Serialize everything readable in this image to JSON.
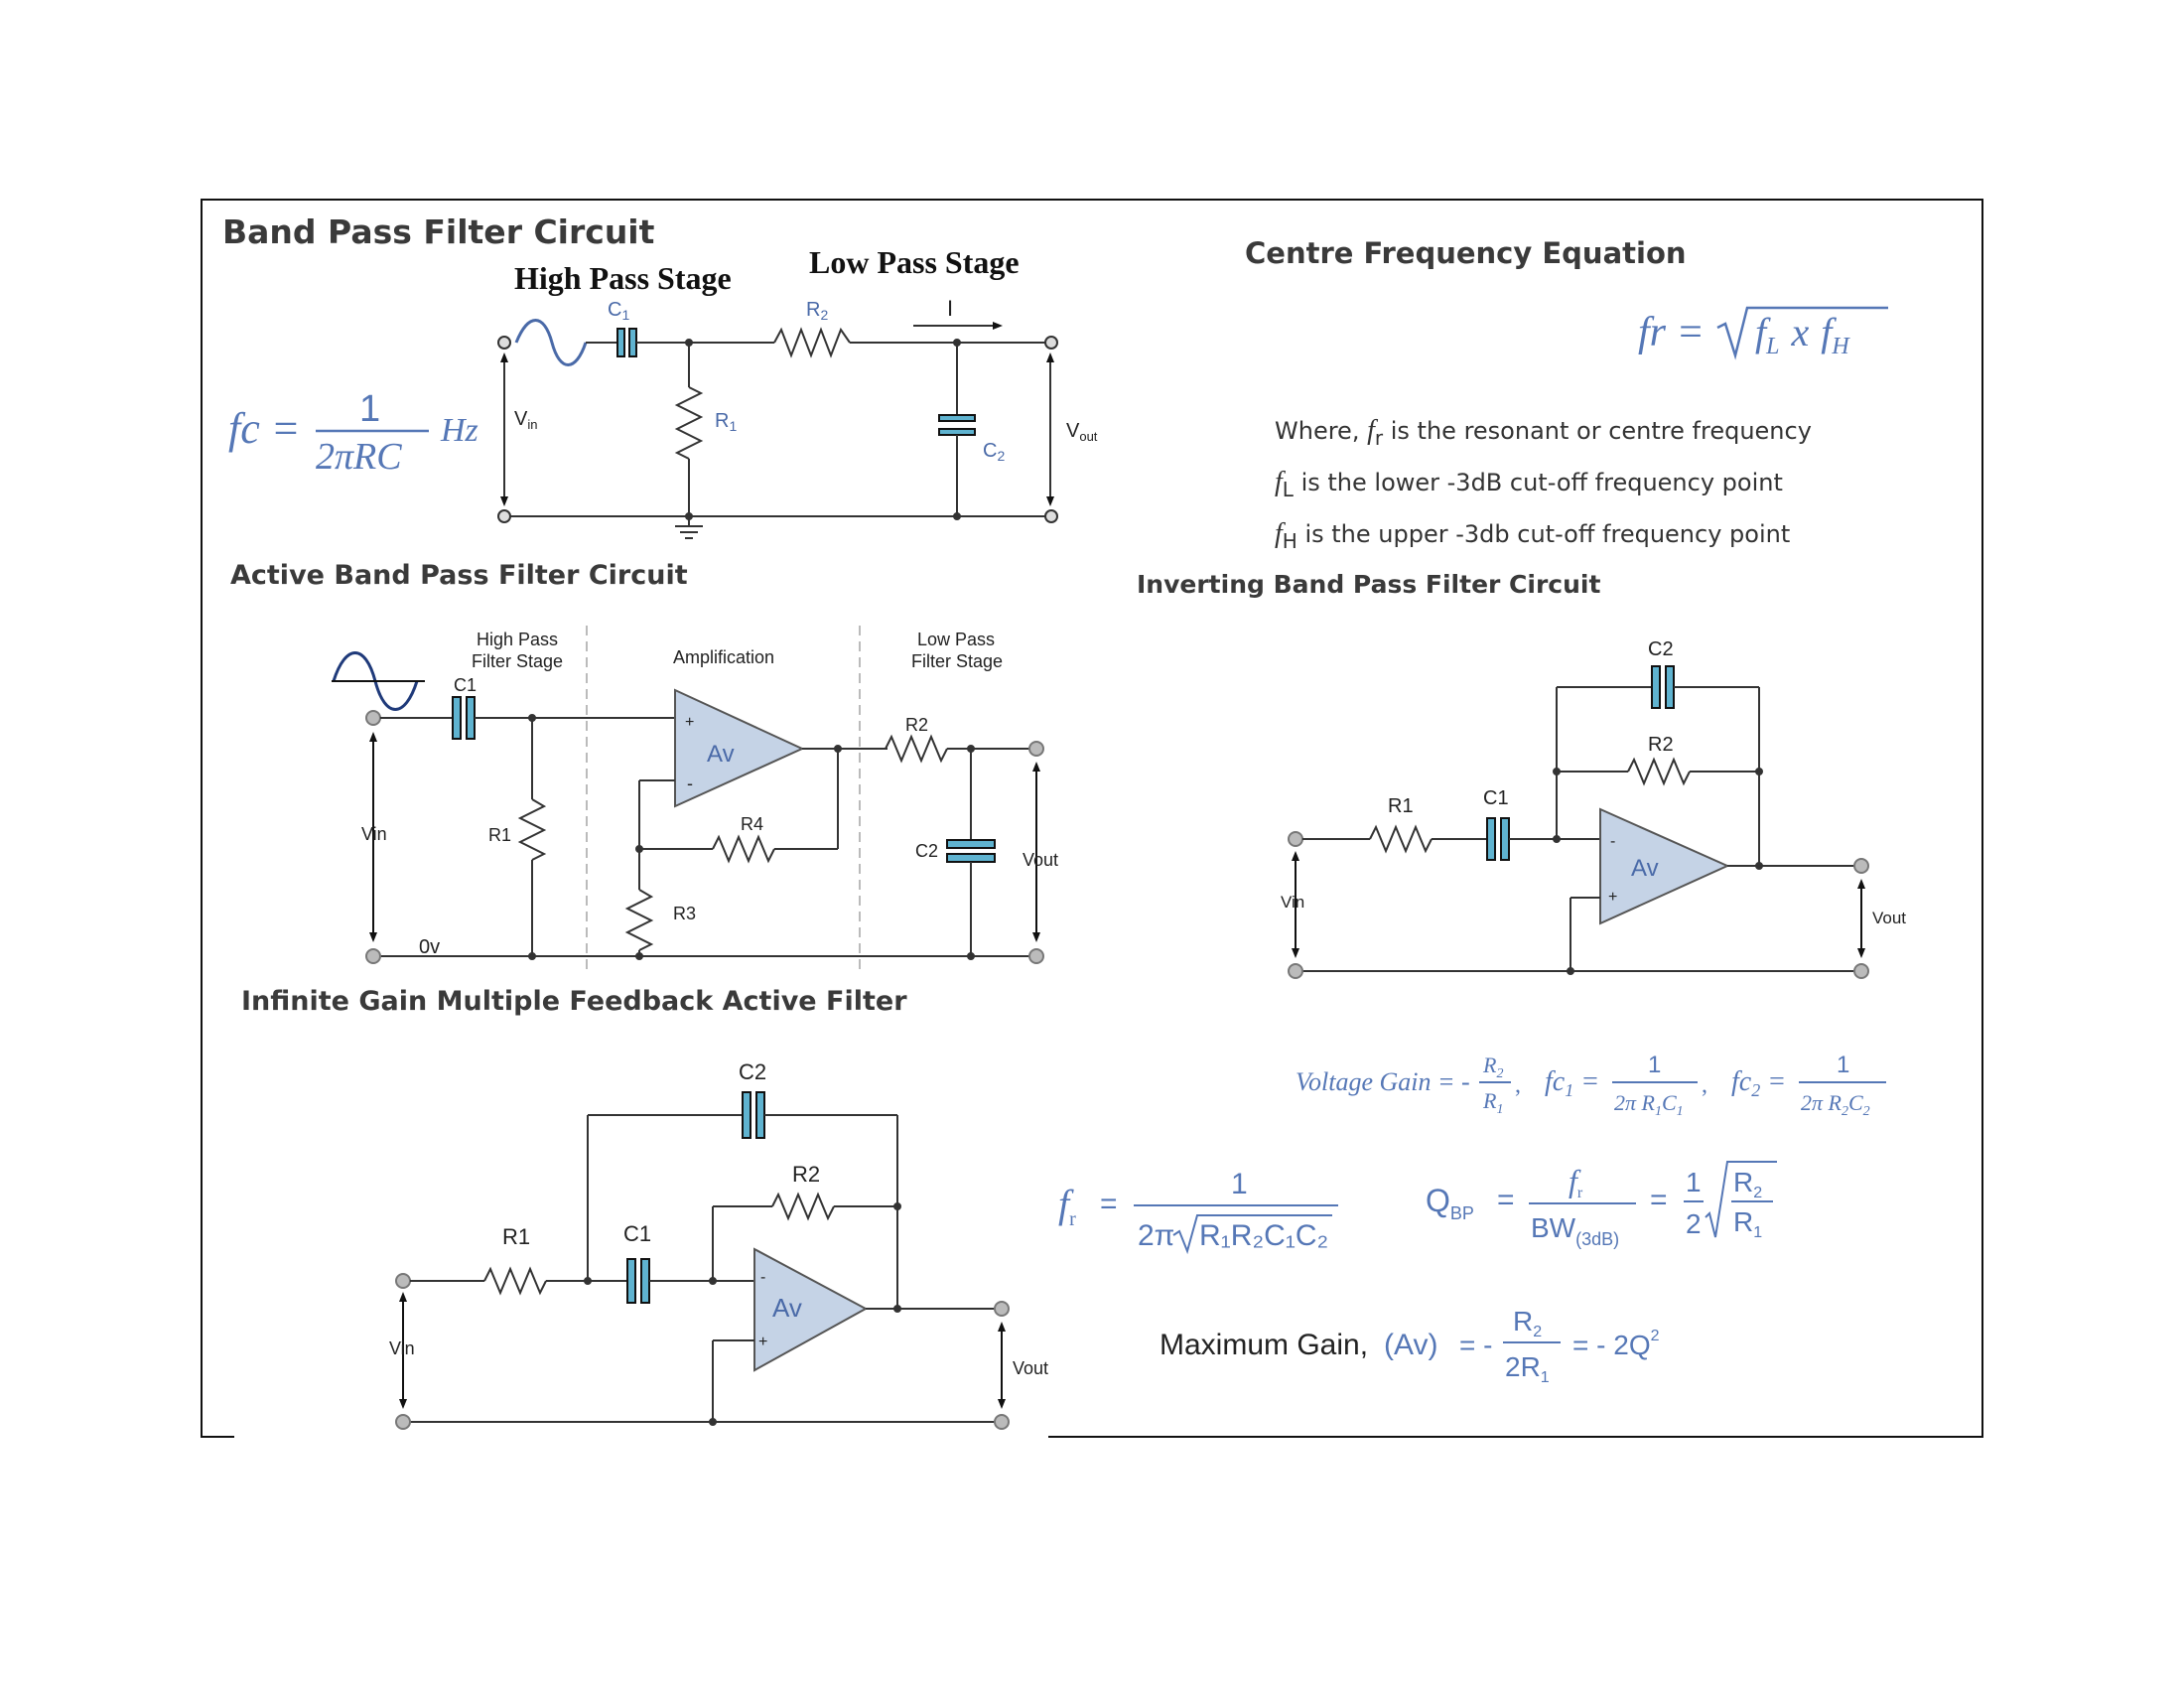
{
  "titles": {
    "band_pass": "Band Pass Filter Circuit",
    "high_pass_stage": "High Pass Stage",
    "low_pass_stage": "Low Pass Stage",
    "centre_freq": "Centre Frequency Equation",
    "active": "Active Band Pass Filter Circuit",
    "inverting": "Inverting Band Pass Filter Circuit",
    "infinite": "Infinite Gain Multiple Feedback Active Filter"
  },
  "circuit1": {
    "c1": "C",
    "c1_sub": "1",
    "r2": "R",
    "r2_sub": "2",
    "r1": "R",
    "r1_sub": "1",
    "c2": "C",
    "c2_sub": "2",
    "current": "I",
    "vin": "V",
    "vin_sub": "in",
    "vout": "V",
    "vout_sub": "out"
  },
  "formulas": {
    "fc_lhs": "fc =",
    "fc_num": "1",
    "fc_den": "2πRC",
    "fc_unit": "Hz",
    "fr_lhs": "fr =",
    "fr_rad": "f",
    "fr_l": "L",
    "fr_x": "x",
    "fr_f2": "f",
    "fr_h": "H"
  },
  "where": {
    "line1_pre": "Where,",
    "line1_sym": "f",
    "line1_sub": "r",
    "line1_text": "is the resonant or centre frequency",
    "line2_sym": "f",
    "line2_sub": "L",
    "line2_text": "is the lower -3dB cut-off frequency point",
    "line3_sym": "f",
    "line3_sub": "H",
    "line3_text": "is the upper -3db cut-off frequency point"
  },
  "active": {
    "hp_stage": [
      "High Pass",
      "Filter Stage"
    ],
    "amplification": "Amplification",
    "lp_stage": [
      "Low Pass",
      "Filter Stage"
    ],
    "c1": "C1",
    "r1": "R1",
    "r2": "R2",
    "r3": "R3",
    "r4": "R4",
    "c2": "C2",
    "av": "Av",
    "plus": "+",
    "minus": "-",
    "vin": "Vin",
    "vout": "Vout",
    "ov": "0v"
  },
  "inverting": {
    "c2": "C2",
    "r2": "R2",
    "r1": "R1",
    "c1": "C1",
    "av": "Av",
    "plus": "+",
    "minus": "-",
    "vin": "Vin",
    "vout": "Vout"
  },
  "infinite": {
    "c2": "C2",
    "r2": "R2",
    "r1": "R1",
    "c1": "C1",
    "av": "Av",
    "plus": "+",
    "minus": "-",
    "vin": "Vin",
    "vout": "Vout"
  },
  "gain_eq": {
    "label": "Voltage Gain = -",
    "num": "R",
    "num_sub": "2",
    "den": "R",
    "den_sub": "1",
    "fc1": "fc",
    "fc1_sub": "1",
    "one": "1",
    "fc1_den": "2π R",
    "fc1_den_s1": "1",
    "fc1_den_c": "C",
    "fc1_den_s2": "1",
    "fc2": "fc",
    "fc2_sub": "2",
    "fc2_den": "2π R",
    "fc2_den_s1": "2",
    "fc2_den_c": "C",
    "fc2_den_s2": "2"
  },
  "fr_eq": {
    "lhs": "f",
    "lhs_sub": "r",
    "num": "1",
    "den_pre": "2π",
    "den_rad": "R₁R₂C₁C₂"
  },
  "q_eq": {
    "lhs": "Q",
    "lhs_sub": "BP",
    "num": "f",
    "num_sub": "r",
    "den": "BW",
    "den_sub": "(3dB)",
    "half": "1",
    "two": "2",
    "r_num": "R",
    "r_num_sub": "2",
    "r_den": "R",
    "r_den_sub": "1"
  },
  "max_gain": {
    "text": "Maximum Gain,",
    "av": "(Av)",
    "num": "R",
    "num_sub": "2",
    "den": "2R",
    "den_sub": "1",
    "rhs": "- 2Q",
    "rhs_sup": "2"
  }
}
